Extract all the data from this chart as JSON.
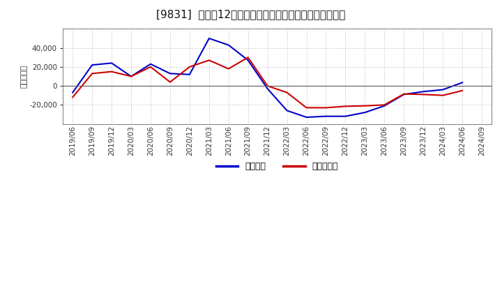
{
  "title": "[9831]  利益の12か月移動合計の対前年同期増減額の推移",
  "ylabel": "（百万円）",
  "background_color": "#ffffff",
  "plot_bg_color": "#ffffff",
  "grid_color": "#bbbbbb",
  "x_labels": [
    "2019/06",
    "2019/09",
    "2019/12",
    "2020/03",
    "2020/06",
    "2020/09",
    "2020/12",
    "2021/03",
    "2021/06",
    "2021/09",
    "2021/12",
    "2022/03",
    "2022/06",
    "2022/09",
    "2022/12",
    "2023/03",
    "2023/06",
    "2023/09",
    "2023/12",
    "2024/03",
    "2024/06",
    "2024/09"
  ],
  "keijo_rieki": [
    -7000,
    22000,
    24000,
    10000,
    23000,
    13000,
    12000,
    50000,
    43000,
    27000,
    -3000,
    -26000,
    -33000,
    -32000,
    -32000,
    -28000,
    -21000,
    -9000,
    -6000,
    -4000,
    3500,
    null
  ],
  "touki_junrieki": [
    -12000,
    13000,
    15000,
    10000,
    20000,
    4000,
    20000,
    27000,
    18000,
    30000,
    0,
    -7000,
    -23000,
    -23000,
    -21500,
    -21000,
    -20000,
    -8500,
    -9000,
    -10000,
    -5000,
    null
  ],
  "line_color_keijo": "#0000cc",
  "line_color_touki": "#cc0000",
  "ylim_min": -40000,
  "ylim_max": 60000,
  "yticks": [
    -20000,
    0,
    20000,
    40000
  ],
  "legend_labels": [
    "経常利益",
    "当期純利益"
  ],
  "title_fontsize": 11,
  "tick_fontsize": 7.5,
  "ylabel_fontsize": 8
}
